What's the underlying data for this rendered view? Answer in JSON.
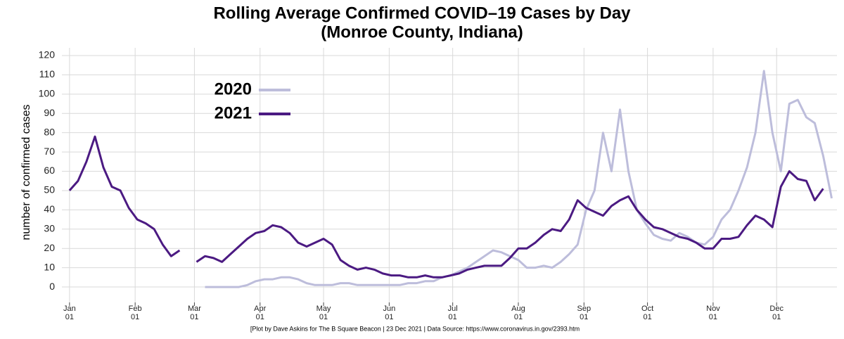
{
  "chart_data": {
    "type": "line",
    "title": "Rolling Average Confirmed COVID–19 Cases by Day",
    "subtitle": "(Monroe County, Indiana)",
    "y_label": "number of confirmed cases",
    "caption": "[Plot by Dave Askins for The B Square Beacon | 23 Dec 2021 | Data Source: https://www.coronavirus.in.gov/2393.htm",
    "x": [
      0,
      4,
      8,
      12,
      16,
      20,
      24,
      28,
      32,
      36,
      40,
      44,
      48,
      52,
      56,
      60,
      64,
      68,
      72,
      76,
      80,
      84,
      88,
      92,
      96,
      100,
      104,
      108,
      112,
      116,
      120,
      124,
      128,
      132,
      136,
      140,
      144,
      148,
      152,
      156,
      160,
      164,
      168,
      172,
      176,
      180,
      184,
      188,
      192,
      196,
      200,
      204,
      208,
      212,
      216,
      220,
      224,
      228,
      232,
      236,
      240,
      244,
      248,
      252,
      256,
      260,
      264,
      268,
      272,
      276,
      280,
      284,
      288,
      292,
      296,
      300,
      304,
      308,
      312,
      316,
      320,
      324,
      328,
      332,
      336,
      340,
      344,
      348,
      352,
      356,
      360
    ],
    "series": [
      {
        "name": "2020",
        "color": "#bdbddb",
        "values": [
          null,
          null,
          null,
          null,
          null,
          null,
          null,
          null,
          null,
          null,
          null,
          null,
          null,
          null,
          null,
          null,
          0,
          0,
          0,
          0,
          0,
          1,
          3,
          4,
          4,
          5,
          5,
          4,
          2,
          1,
          1,
          1,
          2,
          2,
          1,
          1,
          1,
          1,
          1,
          1,
          2,
          2,
          3,
          3,
          5,
          6,
          8,
          10,
          13,
          16,
          19,
          18,
          16,
          14,
          10,
          10,
          11,
          10,
          13,
          17,
          22,
          40,
          50,
          80,
          60,
          92,
          60,
          40,
          33,
          27,
          25,
          24,
          28,
          26,
          23,
          22,
          26,
          35,
          40,
          50,
          62,
          80,
          112,
          80,
          60,
          95,
          97,
          88,
          85,
          68,
          46
        ]
      },
      {
        "name": "2021",
        "color": "#4b1a82",
        "values": [
          50,
          55,
          65,
          78,
          62,
          52,
          50,
          41,
          35,
          33,
          30,
          22,
          16,
          19,
          null,
          13,
          16,
          15,
          13,
          17,
          21,
          25,
          28,
          29,
          32,
          31,
          28,
          23,
          21,
          23,
          25,
          22,
          14,
          11,
          9,
          10,
          9,
          7,
          6,
          6,
          5,
          5,
          6,
          5,
          5,
          6,
          7,
          9,
          10,
          11,
          11,
          11,
          15,
          20,
          20,
          23,
          27,
          30,
          29,
          35,
          45,
          41,
          39,
          37,
          42,
          45,
          47,
          40,
          35,
          31,
          30,
          28,
          26,
          25,
          23,
          20,
          20,
          25,
          25,
          26,
          32,
          37,
          35,
          31,
          52,
          60,
          56,
          55,
          45,
          51,
          null
        ]
      }
    ],
    "xlim": [
      -3.6,
      362.5
    ],
    "xticks": [
      {
        "value": 0,
        "label": "Jan\n01"
      },
      {
        "value": 31,
        "label": "Feb\n01"
      },
      {
        "value": 59,
        "label": "Mar\n01"
      },
      {
        "value": 90,
        "label": "Apr\n01"
      },
      {
        "value": 120,
        "label": "May\n01"
      },
      {
        "value": 151,
        "label": "Jun\n01"
      },
      {
        "value": 181,
        "label": "Jul\n01"
      },
      {
        "value": 212,
        "label": "Aug\n01"
      },
      {
        "value": 243,
        "label": "Sep\n01"
      },
      {
        "value": 273,
        "label": "Oct\n01"
      },
      {
        "value": 304,
        "label": "Nov\n01"
      },
      {
        "value": 334,
        "label": "Dec\n01"
      }
    ],
    "ylim": [
      -8,
      124
    ],
    "yticks": [
      0,
      10,
      20,
      30,
      40,
      50,
      60,
      70,
      80,
      90,
      100,
      110,
      120
    ],
    "grid": true
  }
}
